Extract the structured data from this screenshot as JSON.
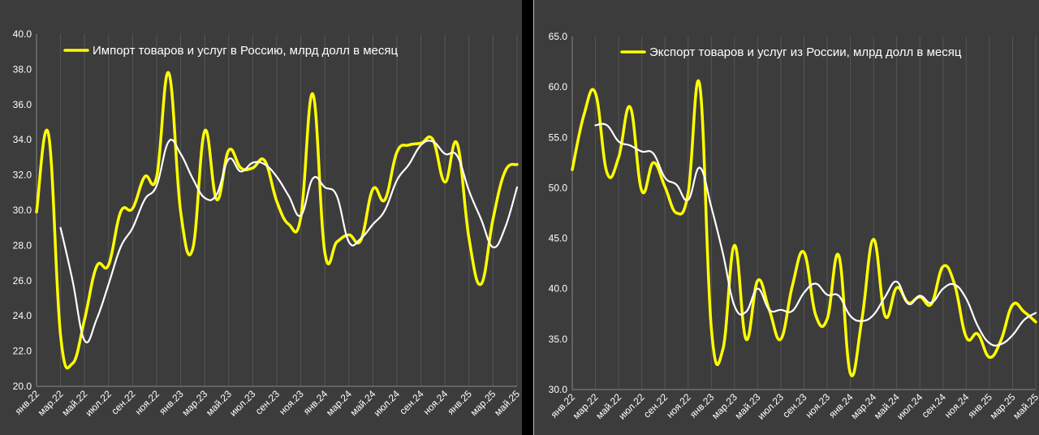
{
  "chart_data": [
    {
      "type": "line",
      "legend_placement": "top-left",
      "grid": "vertical",
      "ylim": [
        20.0,
        40.0
      ],
      "y_ticks": [
        "20.0",
        "22.0",
        "24.0",
        "26.0",
        "28.0",
        "30.0",
        "32.0",
        "34.0",
        "36.0",
        "38.0",
        "40.0"
      ],
      "x_tick_labels": [
        "янв.22",
        "мар.22",
        "май.22",
        "июл.22",
        "сен.22",
        "ноя.22",
        "янв.23",
        "мар.23",
        "май.23",
        "июл.23",
        "сен.23",
        "ноя.23",
        "янв.24",
        "мар.24",
        "май.24",
        "июл.24",
        "сен.24",
        "ноя.24",
        "янв.25",
        "мар.25",
        "май.25"
      ],
      "x": [
        "янв.22",
        "фев.22",
        "мар.22",
        "апр.22",
        "май.22",
        "июн.22",
        "июл.22",
        "авг.22",
        "сен.22",
        "окт.22",
        "ноя.22",
        "дек.22",
        "янв.23",
        "фев.23",
        "мар.23",
        "апр.23",
        "май.23",
        "июн.23",
        "июл.23",
        "авг.23",
        "сен.23",
        "окт.23",
        "ноя.23",
        "дек.23",
        "янв.24",
        "фев.24",
        "мар.24",
        "апр.24",
        "май.24",
        "июн.24",
        "июл.24",
        "авг.24",
        "сен.24",
        "окт.24",
        "ноя.24",
        "дек.24",
        "янв.25",
        "фев.25",
        "мар.25",
        "апр.25",
        "май.25"
      ],
      "series": [
        {
          "name": "Импорт товаров и услуг в Россию, млрд долл в месяц",
          "color": "#ffff00",
          "values": [
            29.9,
            34.3,
            22.9,
            21.3,
            23.8,
            26.8,
            26.9,
            29.9,
            30.1,
            31.9,
            31.9,
            37.8,
            29.9,
            27.8,
            34.5,
            30.6,
            33.4,
            32.4,
            32.4,
            32.8,
            30.5,
            29.2,
            29.6,
            36.6,
            27.6,
            28.2,
            28.6,
            28.3,
            31.2,
            30.6,
            33.3,
            33.7,
            33.8,
            34.0,
            31.6,
            33.8,
            28.4,
            25.8,
            29.5,
            32.2,
            32.6
          ]
        },
        {
          "name": "",
          "color": "#ffffff",
          "values": [
            null,
            null,
            29.0,
            26.0,
            22.6,
            23.8,
            25.8,
            27.9,
            29.0,
            30.6,
            31.4,
            33.9,
            33.2,
            31.8,
            30.7,
            30.9,
            32.9,
            32.2,
            32.7,
            32.6,
            31.9,
            30.8,
            29.7,
            31.8,
            31.3,
            30.8,
            28.2,
            28.4,
            29.2,
            30.0,
            31.7,
            32.6,
            33.7,
            33.9,
            33.2,
            33.1,
            31.1,
            29.5,
            27.9,
            29.0,
            31.3
          ]
        }
      ]
    },
    {
      "type": "line",
      "legend_placement": "top-center",
      "grid": "vertical",
      "ylim": [
        30.0,
        65.0
      ],
      "y_ticks": [
        "30.0",
        "35.0",
        "40.0",
        "45.0",
        "50.0",
        "55.0",
        "60.0",
        "65.0"
      ],
      "x_tick_labels": [
        "янв.22",
        "мар.22",
        "май.22",
        "июл.22",
        "сен.22",
        "ноя.22",
        "янв.23",
        "мар.23",
        "май.23",
        "июл.23",
        "сен.23",
        "ноя.23",
        "янв.24",
        "мар.24",
        "май.24",
        "июл.24",
        "сен.24",
        "ноя.24",
        "янв.25",
        "мар.25",
        "май.25"
      ],
      "x": [
        "янв.22",
        "фев.22",
        "мар.22",
        "апр.22",
        "май.22",
        "июн.22",
        "июл.22",
        "авг.22",
        "сен.22",
        "окт.22",
        "ноя.22",
        "дек.22",
        "янв.23",
        "фев.23",
        "мар.23",
        "апр.23",
        "май.23",
        "июн.23",
        "июл.23",
        "авг.23",
        "сен.23",
        "окт.23",
        "ноя.23",
        "дек.23",
        "янв.24",
        "фев.24",
        "мар.24",
        "апр.24",
        "май.24",
        "июн.24",
        "июл.24",
        "авг.24",
        "сен.24",
        "окт.24",
        "ноя.24",
        "дек.24",
        "янв.25",
        "фев.25",
        "мар.25",
        "апр.25",
        "май.25"
      ],
      "series": [
        {
          "name": "Экспорт товаров и услуг из России, млрд долл в месяц",
          "color": "#ffff00",
          "values": [
            51.8,
            57.2,
            59.4,
            51.5,
            53.0,
            58.0,
            49.7,
            52.5,
            50.1,
            47.5,
            49.5,
            60.2,
            36.1,
            34.0,
            44.3,
            35.0,
            40.8,
            37.9,
            35.0,
            40.3,
            43.6,
            37.4,
            37.0,
            43.3,
            31.6,
            37.0,
            44.9,
            37.3,
            40.1,
            38.6,
            39.2,
            38.5,
            42.2,
            40.4,
            35.2,
            35.5,
            33.2,
            34.9,
            38.4,
            37.7,
            36.7
          ]
        },
        {
          "name": "",
          "color": "#ffffff",
          "values": [
            null,
            null,
            56.2,
            56.2,
            54.6,
            54.2,
            53.6,
            53.4,
            51.0,
            50.3,
            48.8,
            52.0,
            48.1,
            43.5,
            38.3,
            37.7,
            40.0,
            37.9,
            37.9,
            37.8,
            39.6,
            40.5,
            39.4,
            39.3,
            37.3,
            36.8,
            37.4,
            39.2,
            40.7,
            38.5,
            39.3,
            38.6,
            40.0,
            40.4,
            39.0,
            36.3,
            34.6,
            34.5,
            35.4,
            36.9,
            37.6
          ]
        }
      ]
    }
  ]
}
